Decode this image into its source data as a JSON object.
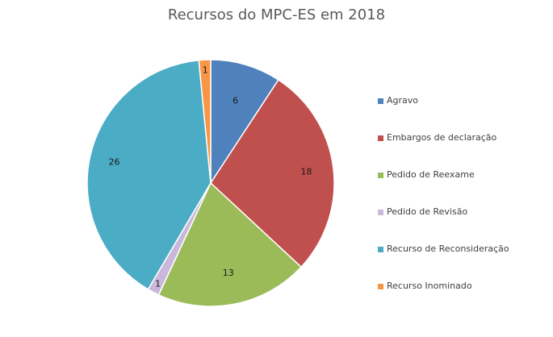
{
  "chart_data": {
    "type": "pie",
    "title": "Recursos do MPC-ES em 2018",
    "categories": [
      "Agravo",
      "Embargos de declaração",
      "Pedido de Reexame",
      "Pedido de Revisão",
      "Recurso de Reconsideração",
      "Recurso Inominado"
    ],
    "values": [
      6,
      18,
      13,
      1,
      26,
      1
    ],
    "colors": [
      "#4f81bd",
      "#c0504d",
      "#9bbb59",
      "#c9b8dc",
      "#4bacc6",
      "#f79646"
    ],
    "start_angle": "12 o'clock",
    "direction": "clockwise",
    "data_labels": true,
    "legend_position": "right"
  }
}
